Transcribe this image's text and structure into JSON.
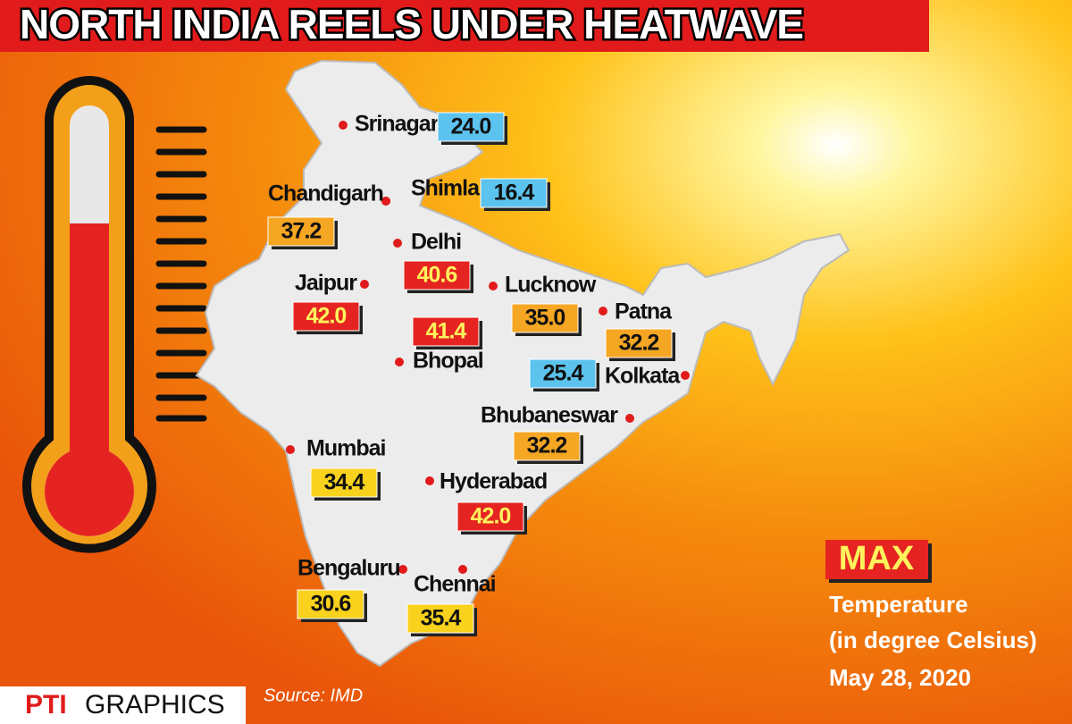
{
  "header": {
    "title": "NORTH INDIA REELS UNDER HEATWAVE"
  },
  "cities": [
    {
      "name": "Srinagar",
      "temperature": "24.0",
      "color": "#5cc3ee",
      "text_color": "#111111"
    },
    {
      "name": "Shimla",
      "temperature": "16.4",
      "color": "#5cc3ee",
      "text_color": "#111111"
    },
    {
      "name": "Chandigarh",
      "temperature": "37.2",
      "color": "#f5a623",
      "text_color": "#111111"
    },
    {
      "name": "Delhi",
      "temperature": "40.6",
      "color": "#e52421",
      "text_color": "#fff35c"
    },
    {
      "name": "Jaipur",
      "temperature": "42.0",
      "color": "#e52421",
      "text_color": "#fff35c"
    },
    {
      "name": "Bhopal",
      "temperature": "41.4",
      "color": "#e52421",
      "text_color": "#fff35c"
    },
    {
      "name": "Lucknow",
      "temperature": "35.0",
      "color": "#f5a623",
      "text_color": "#111111"
    },
    {
      "name": "Patna",
      "temperature": "32.2",
      "color": "#f5a623",
      "text_color": "#111111"
    },
    {
      "name": "Kolkata",
      "temperature": "25.4",
      "color": "#5cc3ee",
      "text_color": "#111111"
    },
    {
      "name": "Bhubaneswar",
      "temperature": "32.2",
      "color": "#f5a623",
      "text_color": "#111111"
    },
    {
      "name": "Mumbai",
      "temperature": "34.4",
      "color": "#f8d21c",
      "text_color": "#111111"
    },
    {
      "name": "Hyderabad",
      "temperature": "42.0",
      "color": "#e52421",
      "text_color": "#fff35c"
    },
    {
      "name": "Bengaluru",
      "temperature": "30.6",
      "color": "#f8d21c",
      "text_color": "#111111"
    },
    {
      "name": "Chennai",
      "temperature": "35.4",
      "color": "#f8d21c",
      "text_color": "#111111"
    }
  ],
  "legend": {
    "badge": "MAX",
    "line1": "Temperature",
    "line2": "(in degree Celsius)",
    "date": "May 28, 2020"
  },
  "footer": {
    "logo": "PTI",
    "brand": "GRAPHICS",
    "source": "Source: IMD"
  }
}
